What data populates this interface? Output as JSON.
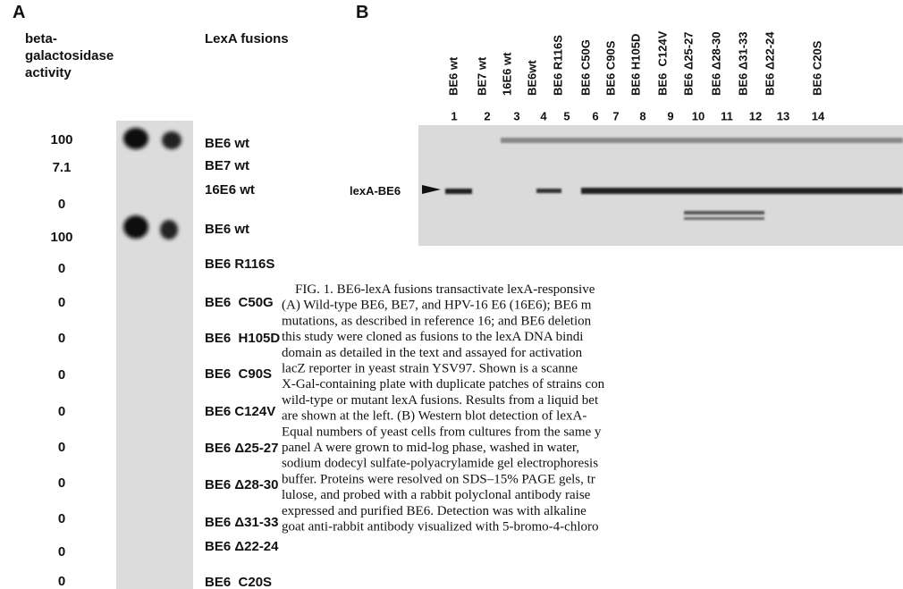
{
  "panel_a": {
    "label": "A",
    "activity_header": [
      "beta-",
      "galactosidase",
      "activity"
    ],
    "fusions_header": "LexA fusions",
    "rows": [
      {
        "activity": "100",
        "fusion": "BE6 wt"
      },
      {
        "activity": "7.1",
        "fusion": "BE7 wt"
      },
      {
        "activity": "0",
        "fusion": "16E6 wt"
      },
      {
        "activity": "100",
        "fusion": "BE6 wt"
      },
      {
        "activity": "0",
        "fusion": "BE6 R116S"
      },
      {
        "activity": "0",
        "fusion": "BE6  C50G"
      },
      {
        "activity": "0",
        "fusion": "BE6  H105D"
      },
      {
        "activity": "0",
        "fusion": "BE6  C90S"
      },
      {
        "activity": "0",
        "fusion": "BE6 C124V"
      },
      {
        "activity": "0",
        "fusion": "BE6 Δ25-27"
      },
      {
        "activity": "0",
        "fusion": "BE6 Δ28-30"
      },
      {
        "activity": "0",
        "fusion": "BE6 Δ31-33"
      },
      {
        "activity": "0",
        "fusion": "BE6 Δ22-24"
      },
      {
        "activity": "0",
        "fusion": "BE6  C20S"
      }
    ]
  },
  "panel_b": {
    "label": "B",
    "band_label": "lexA-BE6",
    "lanes": [
      {
        "name": "BE6 wt",
        "number": "1"
      },
      {
        "name": "BE7 wt",
        "number": "2"
      },
      {
        "name": "16E6 wt",
        "number": "3"
      },
      {
        "name": "BE6wt",
        "number": "4"
      },
      {
        "name": "BE6 R116S",
        "number": "5"
      },
      {
        "name": "BE6 C50G",
        "number": "6"
      },
      {
        "name": "BE6 C90S",
        "number": "7"
      },
      {
        "name": "BE6 H105D",
        "number": "8"
      },
      {
        "name": "BE6  C124V",
        "number": "9"
      },
      {
        "name": "BE6 Δ25-27",
        "number": "10"
      },
      {
        "name": "BE6 Δ28-30",
        "number": "11"
      },
      {
        "name": "BE6 Δ31-33",
        "number": "12"
      },
      {
        "name": "BE6 Δ22-24",
        "number": "13"
      },
      {
        "name": "BE6 C20S",
        "number": "14"
      }
    ]
  },
  "caption": [
    "FIG. 1. BE6-lexA fusions transactivate lexA-responsive",
    "(A) Wild-type BE6, BE7, and HPV-16 E6 (16E6); BE6 m",
    "mutations, as described in reference 16; and BE6 deletion",
    "this study were cloned as fusions to the lexA DNA bindi",
    "domain as detailed in the text and assayed for activation",
    "lacZ reporter in yeast strain YSV97. Shown is a scanne",
    "X-Gal-containing plate with duplicate patches of strains con",
    "wild-type or mutant lexA fusions. Results from a liquid bet",
    "are shown at the left. (B) Western blot detection of lexA-",
    "Equal numbers of yeast cells from cultures from the same y",
    "panel A were grown to mid-log phase, washed in water,",
    "sodium dodecyl sulfate-polyacrylamide gel electrophoresis",
    "buffer. Proteins were resolved on SDS–15% PAGE gels, tr",
    "lulose, and probed with a rabbit polyclonal antibody raise",
    "expressed and purified BE6. Detection was with alkaline",
    "goat anti-rabbit antibody visualized with 5-bromo-4-chloro"
  ]
}
